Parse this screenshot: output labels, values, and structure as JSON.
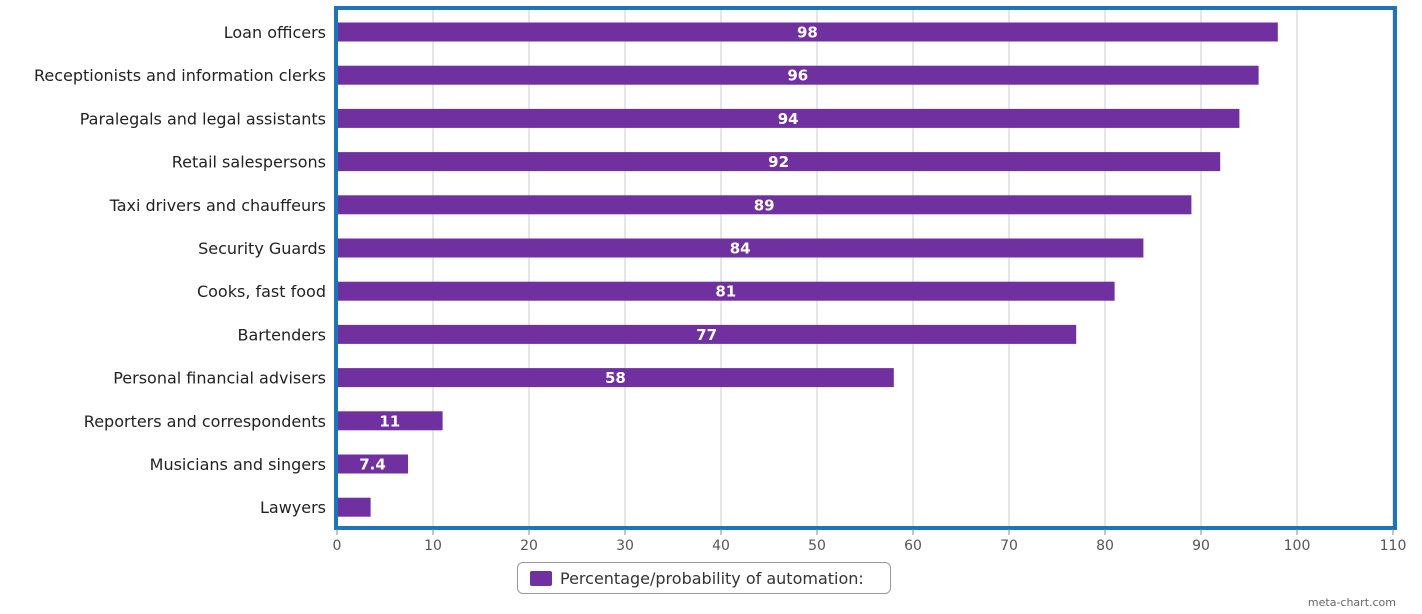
{
  "chart_data": {
    "type": "bar",
    "orientation": "horizontal",
    "categories": [
      "Loan officers",
      "Receptionists and information clerks",
      "Paralegals and legal assistants",
      "Retail salespersons",
      "Taxi drivers and chauffeurs",
      "Security Guards",
      "Cooks, fast food",
      "Bartenders",
      "Personal financial advisers",
      "Reporters and correspondents",
      "Musicians and singers",
      "Lawyers"
    ],
    "series": [
      {
        "name": "Percentage/probability of automation:",
        "values": [
          98,
          96,
          94,
          92,
          89,
          84,
          81,
          77,
          58,
          11,
          7.4,
          3.5
        ],
        "data_labels": [
          "98",
          "96",
          "94",
          "92",
          "89",
          "84",
          "81",
          "77",
          "58",
          "11",
          "7.4",
          ""
        ]
      }
    ],
    "x_ticks": [
      "0",
      "10",
      "20",
      "30",
      "40",
      "50",
      "60",
      "70",
      "80",
      "90",
      "100",
      "110"
    ],
    "xlim": [
      0,
      110
    ],
    "grid": "vertical",
    "legend_position": "bottom-center"
  },
  "colors": {
    "bar": "#7030a0",
    "frame": "#1f73b7",
    "grid": "#cccccc"
  },
  "legend": {
    "label": "Percentage/probability of automation:"
  },
  "credit": "meta-chart.com"
}
